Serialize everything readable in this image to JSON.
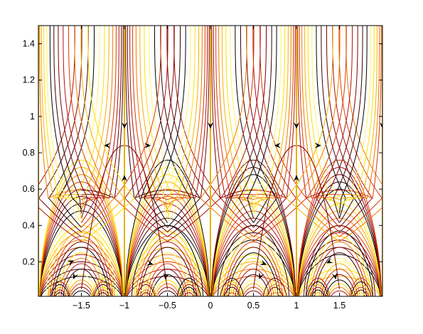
{
  "chart_data": {
    "type": "line",
    "title": "",
    "xlabel": "",
    "ylabel": "",
    "xlim": [
      -2.0,
      2.0
    ],
    "ylim": [
      0.01,
      1.5
    ],
    "x_ticks": [
      -1.5,
      -1,
      -0.5,
      0,
      0.5,
      1,
      1.5
    ],
    "x_tick_labels": [
      "−1.5",
      "−1",
      "−0.5",
      "0",
      "0.5",
      "1",
      "1.5"
    ],
    "y_ticks": [
      0.2,
      0.4,
      0.6,
      0.8,
      1,
      1.2,
      1.4
    ],
    "y_tick_labels": [
      "0.2",
      "0.4",
      "0.6",
      "0.8",
      "1",
      "1.2",
      "1.4"
    ],
    "grid": false,
    "legend": "none",
    "description_of_marks": "streamlines of a periodic (period 1) vector field in the upper half-plane",
    "period": 1,
    "vertical_separatrices_x": [
      -1,
      0,
      1,
      2
    ],
    "main_arches": [
      {
        "left": -2,
        "right": -1
      },
      {
        "left": -1,
        "right": 0
      },
      {
        "left": 0,
        "right": 1
      },
      {
        "left": 1,
        "right": 2
      }
    ],
    "main_arch_heights": [
      0.12,
      0.16,
      0.2,
      0.24,
      0.28,
      0.32,
      0.36,
      0.4,
      0.44,
      0.48,
      0.52,
      0.56,
      0.6,
      0.64,
      0.68,
      0.72,
      0.76
    ],
    "secondary_arch_heights": [
      0.04,
      0.06,
      0.08,
      0.1,
      0.13,
      0.16,
      0.19,
      0.22,
      0.25,
      0.28,
      0.31,
      0.34,
      0.37,
      0.4
    ],
    "arch_centers": [
      -1.5,
      -0.5,
      0.5,
      1.5
    ],
    "small_arch_centers": [
      -1.75,
      -1.25,
      -0.75,
      -0.25,
      0.25,
      0.75,
      1.25,
      1.75
    ],
    "stagnation_points": [
      {
        "x": -1,
        "y": 0.84
      },
      {
        "x": 1,
        "y": 0.84
      },
      {
        "x": -1.5,
        "y": 0.16
      },
      {
        "x": -0.5,
        "y": 0.16
      },
      {
        "x": 0.5,
        "y": 0.16
      },
      {
        "x": 1.5,
        "y": 0.16
      }
    ],
    "arrows": [
      {
        "x": -1,
        "y": 0.95,
        "dx": 0,
        "dy": -1
      },
      {
        "x": -1,
        "y": 0.66,
        "dx": 0,
        "dy": 1
      },
      {
        "x": 0,
        "y": 0.95,
        "dx": 0,
        "dy": -1
      },
      {
        "x": 1,
        "y": 0.95,
        "dx": 0,
        "dy": -1
      },
      {
        "x": 1,
        "y": 0.66,
        "dx": 0,
        "dy": 1
      },
      {
        "x": 2,
        "y": 0.95,
        "dx": 0,
        "dy": -1
      },
      {
        "x": -1.2,
        "y": 0.84,
        "dx": -1,
        "dy": 0
      },
      {
        "x": -0.73,
        "y": 0.84,
        "dx": 1,
        "dy": 0
      },
      {
        "x": 0.78,
        "y": 0.84,
        "dx": -1,
        "dy": 0
      },
      {
        "x": 1.25,
        "y": 0.84,
        "dx": 1,
        "dy": 0
      },
      {
        "x": -1.62,
        "y": 0.2,
        "dx": 1,
        "dy": 0.5
      },
      {
        "x": -1.58,
        "y": 0.12,
        "dx": -0.4,
        "dy": -1
      },
      {
        "x": -0.7,
        "y": 0.19,
        "dx": 1,
        "dy": -0.3
      },
      {
        "x": -0.52,
        "y": 0.12,
        "dx": -0.2,
        "dy": -1
      },
      {
        "x": 0.62,
        "y": 0.19,
        "dx": 1,
        "dy": -0.4
      },
      {
        "x": 0.58,
        "y": 0.12,
        "dx": -0.4,
        "dy": -1
      },
      {
        "x": 1.38,
        "y": 0.2,
        "dx": -1,
        "dy": -0.5
      },
      {
        "x": 1.45,
        "y": 0.12,
        "dx": 0.2,
        "dy": -1
      }
    ],
    "colors": {
      "streamline_palette": [
        "#000000",
        "#3a0000",
        "#7a0000",
        "#b01010",
        "#d83a00",
        "#f07800",
        "#f8b000",
        "#ffe000",
        "#fff36a"
      ],
      "separatrix": "#e8b000",
      "arrow": "#000000",
      "axes": "#000000"
    }
  }
}
